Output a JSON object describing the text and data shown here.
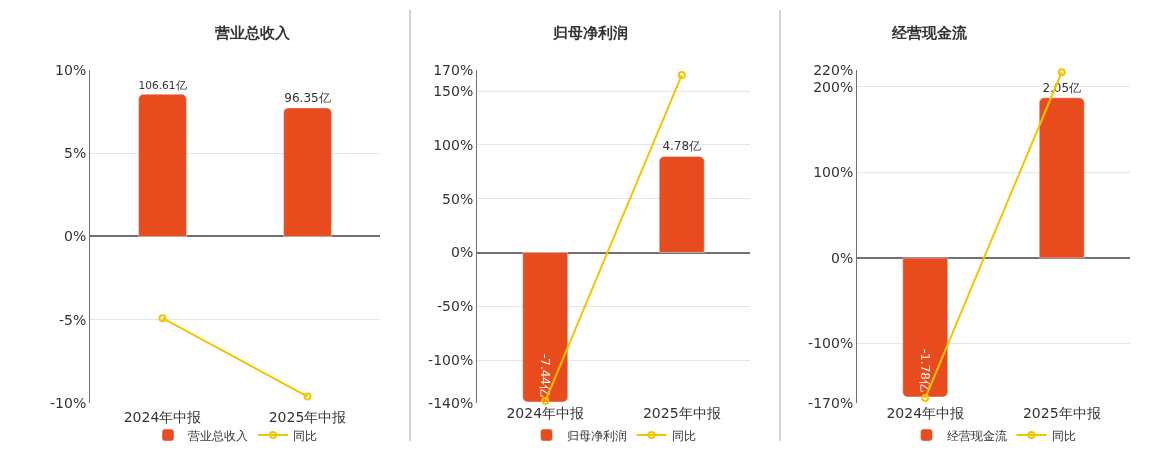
{
  "chart_data": [
    {
      "type": "bar",
      "title": "营业总收入",
      "categories": [
        "2024年中报",
        "2025年中报"
      ],
      "series": [
        {
          "name": "营业总收入",
          "axis": "y2",
          "color": "#e84c1e",
          "values": [
            106.61,
            96.35
          ],
          "value_labels": [
            "106.61亿",
            "96.35亿"
          ]
        },
        {
          "name": "同比",
          "type": "line",
          "color": "#f5c400",
          "values": [
            -4.9,
            -9.6
          ],
          "marker": "circle"
        }
      ],
      "ylim": [
        -10,
        10
      ],
      "yticks": [
        {
          "value": -10,
          "label": "-10%"
        },
        {
          "value": -5,
          "label": "-5%"
        },
        {
          "value": 0,
          "label": "0%"
        },
        {
          "value": 5,
          "label": "5%"
        },
        {
          "value": 10,
          "label": "10%"
        }
      ],
      "y2lim": [
        -125,
        125
      ],
      "grid": "y",
      "legend": "bottom"
    },
    {
      "type": "bar",
      "title": "归母净利润",
      "categories": [
        "2024年中报",
        "2025年中报"
      ],
      "series": [
        {
          "name": "归母净利润",
          "axis": "y2",
          "color": "#e84c1e",
          "values": [
            -7.44,
            4.78
          ],
          "value_labels": [
            "-7.44亿",
            "4.78亿"
          ]
        },
        {
          "name": "同比",
          "type": "line",
          "color": "#f5c400",
          "values": [
            -138,
            165
          ],
          "marker": "circle"
        }
      ],
      "ylim": [
        -140,
        170
      ],
      "yticks": [
        {
          "value": -140,
          "label": "-140%"
        },
        {
          "value": -100,
          "label": "-100%"
        },
        {
          "value": -50,
          "label": "-50%"
        },
        {
          "value": 0,
          "label": "0%"
        },
        {
          "value": 50,
          "label": "50%"
        },
        {
          "value": 100,
          "label": "100%"
        },
        {
          "value": 150,
          "label": "150%"
        },
        {
          "value": 170,
          "label": "170%"
        }
      ],
      "y2lim": [
        -7.5,
        9.1
      ],
      "grid": "y",
      "legend": "bottom"
    },
    {
      "type": "bar",
      "title": "经营现金流",
      "categories": [
        "2024年中报",
        "2025年中报"
      ],
      "series": [
        {
          "name": "经营现金流",
          "axis": "y2",
          "color": "#e84c1e",
          "values": [
            -1.78,
            2.05
          ],
          "value_labels": [
            "-1.78亿",
            "2.05亿"
          ]
        },
        {
          "name": "同比",
          "type": "line",
          "color": "#f5c400",
          "values": [
            -164,
            217
          ],
          "marker": "circle"
        }
      ],
      "ylim": [
        -170,
        220
      ],
      "yticks": [
        {
          "value": -170,
          "label": "-170%"
        },
        {
          "value": -100,
          "label": "-100%"
        },
        {
          "value": 0,
          "label": "0%"
        },
        {
          "value": 100,
          "label": "100%"
        },
        {
          "value": 200,
          "label": "200%"
        },
        {
          "value": 220,
          "label": "220%"
        }
      ],
      "y2lim": [
        -1.86,
        2.41
      ],
      "grid": "y",
      "legend": "bottom"
    }
  ]
}
